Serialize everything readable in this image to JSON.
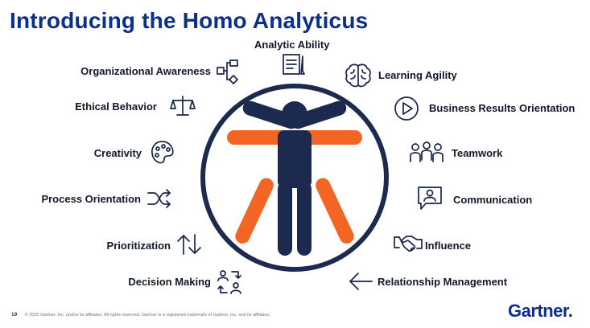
{
  "title": "Introducing the Homo Analyticus",
  "center_top": {
    "label": "Analytic Ability",
    "icon": "notepad-pencil-icon"
  },
  "left_items": [
    {
      "label": "Organizational Awareness",
      "icon": "org-chart-icon"
    },
    {
      "label": "Ethical Behavior",
      "icon": "scales-icon"
    },
    {
      "label": "Creativity",
      "icon": "palette-icon"
    },
    {
      "label": "Process Orientation",
      "icon": "shuffle-icon"
    },
    {
      "label": "Prioritization",
      "icon": "sort-arrows-icon"
    },
    {
      "label": "Decision Making",
      "icon": "decision-people-icon"
    }
  ],
  "right_items": [
    {
      "label": "Learning Agility",
      "icon": "brain-icon"
    },
    {
      "label": "Business Results Orientation",
      "icon": "play-circle-icon"
    },
    {
      "label": "Teamwork",
      "icon": "team-icon"
    },
    {
      "label": "Communication",
      "icon": "speech-person-icon"
    },
    {
      "label": "Influence",
      "icon": "handshake-icon"
    },
    {
      "label": "Relationship Management",
      "icon": "arrow-left-icon"
    }
  ],
  "colors": {
    "navy": "#1b2a4e",
    "orange": "#f26522",
    "title_blue": "#0c2f8a"
  },
  "footer": {
    "page": "19",
    "copyright": "© 2020 Gartner, Inc. and/or its affiliates. All rights reserved. Gartner is a registered trademark of Gartner, Inc. and its affiliates."
  },
  "logo": "Gartner"
}
